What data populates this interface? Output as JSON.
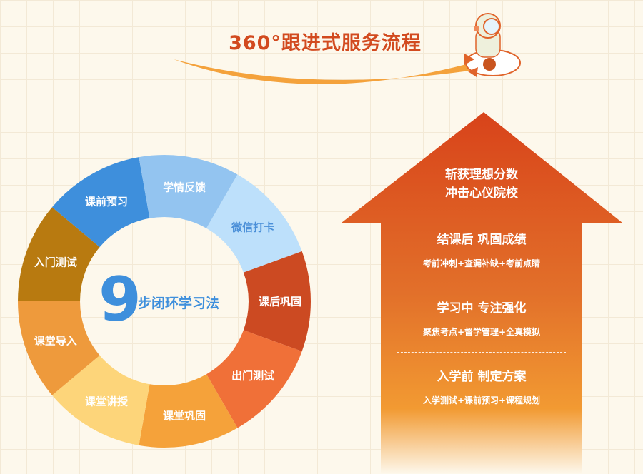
{
  "header": {
    "title": "360°跟进式服务流程"
  },
  "cycle": {
    "number": "9",
    "label": "步闭环学习法",
    "segments": [
      {
        "label": "课后巩固",
        "color": "#cc4a22",
        "text_color": "#ffffff"
      },
      {
        "label": "出门测试",
        "color": "#f07038",
        "text_color": "#ffffff"
      },
      {
        "label": "课堂巩固",
        "color": "#f5a23a",
        "text_color": "#ffffff"
      },
      {
        "label": "课堂讲授",
        "color": "#fdd57a",
        "text_color": "#ffffff"
      },
      {
        "label": "课堂导入",
        "color": "#ee9a3c",
        "text_color": "#ffffff"
      },
      {
        "label": "入门测试",
        "color": "#b87a10",
        "text_color": "#ffffff"
      },
      {
        "label": "课前预习",
        "color": "#3e8fdc",
        "text_color": "#ffffff"
      },
      {
        "label": "学情反馈",
        "color": "#93c4f0",
        "text_color": "#ffffff"
      },
      {
        "label": "微信打卡",
        "color": "#bde0fb",
        "text_color": "#4a8fd8"
      }
    ]
  },
  "arrow": {
    "goal_line1": "斩获理想分数",
    "goal_line2": "冲击心仪院校",
    "stages": [
      {
        "title": "结课后 巩固成绩",
        "detail": "考前冲刺+查漏补缺+考前点睛"
      },
      {
        "title": "学习中 专注强化",
        "detail": "聚焦考点+督学管理+全真模拟"
      },
      {
        "title": "入学前 制定方案",
        "detail": "入学测试+课前预习+课程规划"
      }
    ],
    "colors": {
      "top": "#d8431a",
      "middle": "#f0952e",
      "bottom": "#fdf8ec"
    }
  }
}
